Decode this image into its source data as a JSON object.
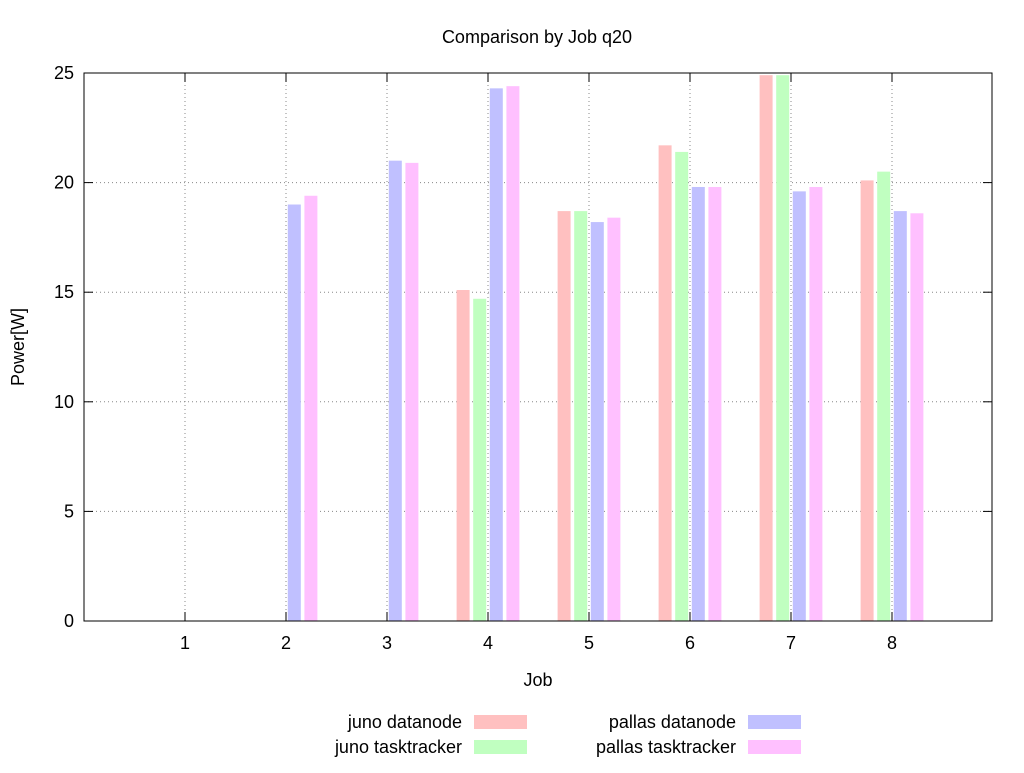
{
  "chart_data": {
    "type": "bar",
    "title": "Comparison by Job q20",
    "xlabel": "Job",
    "ylabel": "Power[W]",
    "categories": [
      "1",
      "2",
      "3",
      "4",
      "5",
      "6",
      "7",
      "8"
    ],
    "ylim": [
      0,
      25
    ],
    "yticks": [
      "0",
      "5",
      "10",
      "15",
      "20",
      "25"
    ],
    "grid": true,
    "legend_position": "bottom",
    "series": [
      {
        "name": "juno datanode",
        "color": "#ffc0c0",
        "values": [
          0,
          0,
          0,
          15.1,
          18.7,
          21.7,
          24.9,
          20.1
        ]
      },
      {
        "name": "juno tasktracker",
        "color": "#c0ffc0",
        "values": [
          0,
          0,
          0,
          14.7,
          18.7,
          21.4,
          24.9,
          20.5
        ]
      },
      {
        "name": "pallas datanode",
        "color": "#c0c0ff",
        "values": [
          0,
          19.0,
          21.0,
          24.3,
          18.2,
          19.8,
          19.6,
          18.7
        ]
      },
      {
        "name": "pallas tasktracker",
        "color": "#ffc0ff",
        "values": [
          0,
          19.4,
          20.9,
          24.4,
          18.4,
          19.8,
          19.8,
          18.6
        ]
      }
    ]
  }
}
